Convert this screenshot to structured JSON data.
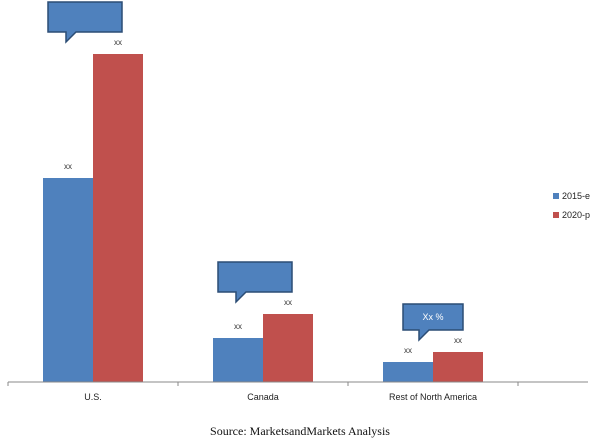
{
  "chart_data": {
    "type": "bar",
    "categories": [
      "U.S.",
      "Canada",
      "Rest of North America"
    ],
    "series": [
      {
        "name": "2015-e",
        "color": "#4F81BD",
        "values": [
          51,
          11,
          5
        ],
        "labels": [
          "xx",
          "xx",
          "xx"
        ]
      },
      {
        "name": "2020-p",
        "color": "#C0504D",
        "values": [
          82,
          17,
          7.5
        ],
        "labels": [
          "xx",
          "xx",
          "xx"
        ]
      }
    ],
    "callouts": [
      {
        "category": "U.S.",
        "text": ""
      },
      {
        "category": "Canada",
        "text": ""
      },
      {
        "category": "Rest of North America",
        "text": "Xx %"
      }
    ],
    "callout_color": "#4F81BD",
    "ylim": [
      0,
      90
    ],
    "xlabel": "",
    "ylabel": "",
    "legend_position": "right",
    "grid": false
  },
  "source": "Source: MarketsandMarkets Analysis"
}
